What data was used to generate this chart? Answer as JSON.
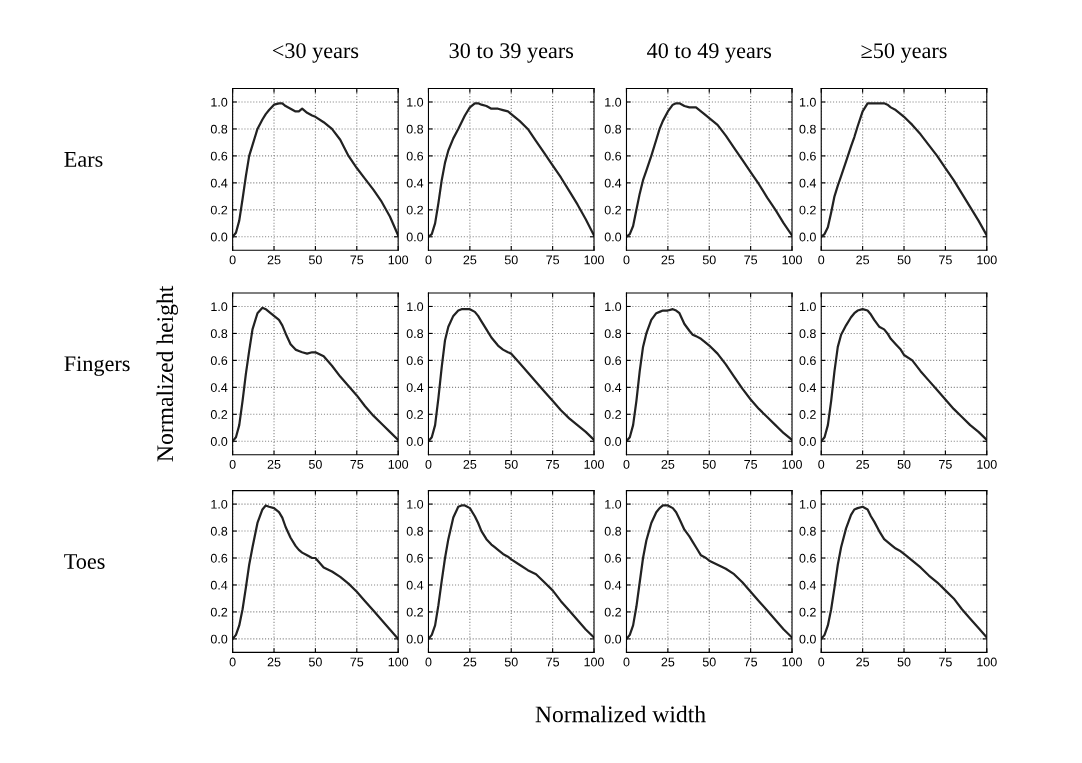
{
  "chart_data": [
    {
      "type": "line",
      "title": "<30 years",
      "annotations": [
        "Ears"
      ],
      "x": [
        0,
        2,
        4,
        6,
        8,
        10,
        12,
        15,
        18,
        20,
        22,
        25,
        28,
        30,
        32,
        35,
        38,
        40,
        42,
        45,
        48,
        50,
        55,
        60,
        65,
        70,
        75,
        80,
        85,
        90,
        95,
        100
      ],
      "series": [
        {
          "color": "#222222",
          "values": [
            0,
            0.03,
            0.12,
            0.28,
            0.45,
            0.6,
            0.68,
            0.8,
            0.87,
            0.91,
            0.94,
            0.98,
            0.99,
            0.99,
            0.97,
            0.95,
            0.93,
            0.93,
            0.95,
            0.92,
            0.9,
            0.89,
            0.85,
            0.8,
            0.72,
            0.6,
            0.51,
            0.43,
            0.35,
            0.26,
            0.15,
            0.01
          ]
        }
      ],
      "xlim": [
        0,
        100
      ],
      "ylim": [
        -0.1,
        1.1
      ],
      "xticks": [
        0,
        25,
        50,
        75,
        100
      ],
      "yticks": [
        {
          "value": 0,
          "label": "0.0"
        },
        {
          "value": 0.2,
          "label": "0.2"
        },
        {
          "value": 0.4,
          "label": "0.4"
        },
        {
          "value": 0.6,
          "label": "0.6"
        },
        {
          "value": 0.8,
          "label": "0.8"
        },
        {
          "value": 1,
          "label": "1.0"
        }
      ],
      "grid": true,
      "line_style": "solid"
    },
    {
      "type": "line",
      "title": "30 to 39 years",
      "x": [
        0,
        2,
        4,
        6,
        8,
        10,
        12,
        15,
        18,
        20,
        22,
        25,
        28,
        30,
        32,
        35,
        38,
        40,
        42,
        45,
        48,
        50,
        55,
        60,
        65,
        70,
        75,
        80,
        85,
        90,
        95,
        100
      ],
      "series": [
        {
          "color": "#222222",
          "values": [
            0,
            0.02,
            0.1,
            0.25,
            0.42,
            0.55,
            0.64,
            0.73,
            0.8,
            0.85,
            0.9,
            0.96,
            0.99,
            0.99,
            0.98,
            0.97,
            0.95,
            0.95,
            0.95,
            0.94,
            0.93,
            0.91,
            0.86,
            0.8,
            0.71,
            0.62,
            0.53,
            0.44,
            0.34,
            0.24,
            0.13,
            0.01
          ]
        }
      ],
      "xlim": [
        0,
        100
      ],
      "ylim": [
        -0.1,
        1.1
      ],
      "xticks": [
        0,
        25,
        50,
        75,
        100
      ],
      "yticks": [
        {
          "value": 0,
          "label": "0.0"
        },
        {
          "value": 0.2,
          "label": "0.2"
        },
        {
          "value": 0.4,
          "label": "0.4"
        },
        {
          "value": 0.6,
          "label": "0.6"
        },
        {
          "value": 0.8,
          "label": "0.8"
        },
        {
          "value": 1,
          "label": "1.0"
        }
      ],
      "grid": true,
      "line_style": "solid"
    },
    {
      "type": "line",
      "title": "40 to 49 years",
      "x": [
        0,
        2,
        4,
        6,
        8,
        10,
        12,
        15,
        18,
        20,
        22,
        25,
        28,
        30,
        32,
        35,
        38,
        40,
        42,
        45,
        48,
        50,
        55,
        60,
        65,
        70,
        75,
        80,
        85,
        90,
        95,
        100
      ],
      "series": [
        {
          "color": "#222222",
          "values": [
            0,
            0.02,
            0.08,
            0.2,
            0.32,
            0.42,
            0.49,
            0.6,
            0.72,
            0.8,
            0.86,
            0.93,
            0.98,
            0.99,
            0.99,
            0.97,
            0.96,
            0.96,
            0.96,
            0.93,
            0.9,
            0.88,
            0.83,
            0.75,
            0.66,
            0.57,
            0.48,
            0.39,
            0.29,
            0.2,
            0.1,
            0.01
          ]
        }
      ],
      "xlim": [
        0,
        100
      ],
      "ylim": [
        -0.1,
        1.1
      ],
      "xticks": [
        0,
        25,
        50,
        75,
        100
      ],
      "yticks": [
        {
          "value": 0,
          "label": "0.0"
        },
        {
          "value": 0.2,
          "label": "0.2"
        },
        {
          "value": 0.4,
          "label": "0.4"
        },
        {
          "value": 0.6,
          "label": "0.6"
        },
        {
          "value": 0.8,
          "label": "0.8"
        },
        {
          "value": 1,
          "label": "1.0"
        }
      ],
      "grid": true,
      "line_style": "solid"
    },
    {
      "type": "line",
      "title": "≥50 years",
      "x": [
        0,
        2,
        4,
        6,
        8,
        10,
        12,
        15,
        18,
        20,
        22,
        25,
        28,
        30,
        32,
        35,
        38,
        40,
        42,
        45,
        48,
        50,
        55,
        60,
        65,
        70,
        75,
        80,
        85,
        90,
        95,
        100
      ],
      "series": [
        {
          "color": "#222222",
          "values": [
            0,
            0.02,
            0.07,
            0.18,
            0.3,
            0.38,
            0.45,
            0.56,
            0.67,
            0.74,
            0.82,
            0.93,
            0.99,
            0.99,
            0.99,
            0.99,
            0.99,
            0.98,
            0.96,
            0.94,
            0.91,
            0.89,
            0.83,
            0.76,
            0.68,
            0.6,
            0.51,
            0.42,
            0.32,
            0.22,
            0.12,
            0.01
          ]
        }
      ],
      "xlim": [
        0,
        100
      ],
      "ylim": [
        -0.1,
        1.1
      ],
      "xticks": [
        0,
        25,
        50,
        75,
        100
      ],
      "yticks": [
        {
          "value": 0,
          "label": "0.0"
        },
        {
          "value": 0.2,
          "label": "0.2"
        },
        {
          "value": 0.4,
          "label": "0.4"
        },
        {
          "value": 0.6,
          "label": "0.6"
        },
        {
          "value": 0.8,
          "label": "0.8"
        },
        {
          "value": 1,
          "label": "1.0"
        }
      ],
      "grid": true,
      "line_style": "solid"
    },
    {
      "type": "line",
      "ylabel": "Normalized height",
      "annotations": [
        "Fingers"
      ],
      "x": [
        0,
        2,
        4,
        6,
        8,
        10,
        12,
        15,
        18,
        20,
        22,
        25,
        28,
        30,
        32,
        35,
        38,
        40,
        42,
        45,
        48,
        50,
        55,
        60,
        65,
        70,
        75,
        80,
        85,
        90,
        95,
        100
      ],
      "series": [
        {
          "color": "#222222",
          "values": [
            0,
            0.03,
            0.12,
            0.3,
            0.5,
            0.67,
            0.83,
            0.95,
            0.99,
            0.98,
            0.96,
            0.93,
            0.9,
            0.86,
            0.8,
            0.72,
            0.68,
            0.67,
            0.66,
            0.65,
            0.66,
            0.66,
            0.63,
            0.56,
            0.48,
            0.41,
            0.34,
            0.26,
            0.19,
            0.13,
            0.07,
            0.01
          ]
        }
      ],
      "xlim": [
        0,
        100
      ],
      "ylim": [
        -0.1,
        1.1
      ],
      "xticks": [
        0,
        25,
        50,
        75,
        100
      ],
      "yticks": [
        {
          "value": 0,
          "label": "0.0"
        },
        {
          "value": 0.2,
          "label": "0.2"
        },
        {
          "value": 0.4,
          "label": "0.4"
        },
        {
          "value": 0.6,
          "label": "0.6"
        },
        {
          "value": 0.8,
          "label": "0.8"
        },
        {
          "value": 1,
          "label": "1.0"
        }
      ],
      "grid": true,
      "line_style": "solid"
    },
    {
      "type": "line",
      "x": [
        0,
        2,
        4,
        6,
        8,
        10,
        12,
        15,
        18,
        20,
        22,
        25,
        28,
        30,
        32,
        35,
        38,
        40,
        42,
        45,
        48,
        50,
        55,
        60,
        65,
        70,
        75,
        80,
        85,
        90,
        95,
        100
      ],
      "series": [
        {
          "color": "#222222",
          "values": [
            0,
            0.03,
            0.12,
            0.32,
            0.55,
            0.75,
            0.85,
            0.93,
            0.97,
            0.98,
            0.98,
            0.98,
            0.96,
            0.93,
            0.89,
            0.83,
            0.77,
            0.74,
            0.71,
            0.68,
            0.66,
            0.65,
            0.58,
            0.51,
            0.44,
            0.37,
            0.3,
            0.23,
            0.17,
            0.12,
            0.07,
            0.01
          ]
        }
      ],
      "xlim": [
        0,
        100
      ],
      "ylim": [
        -0.1,
        1.1
      ],
      "xticks": [
        0,
        25,
        50,
        75,
        100
      ],
      "yticks": [
        {
          "value": 0,
          "label": "0.0"
        },
        {
          "value": 0.2,
          "label": "0.2"
        },
        {
          "value": 0.4,
          "label": "0.4"
        },
        {
          "value": 0.6,
          "label": "0.6"
        },
        {
          "value": 0.8,
          "label": "0.8"
        },
        {
          "value": 1,
          "label": "1.0"
        }
      ],
      "grid": true,
      "line_style": "solid"
    },
    {
      "type": "line",
      "x": [
        0,
        2,
        4,
        6,
        8,
        10,
        12,
        15,
        18,
        20,
        22,
        25,
        28,
        30,
        32,
        35,
        38,
        40,
        42,
        45,
        48,
        50,
        55,
        60,
        65,
        70,
        75,
        80,
        85,
        90,
        95,
        100
      ],
      "series": [
        {
          "color": "#222222",
          "values": [
            0,
            0.03,
            0.12,
            0.3,
            0.52,
            0.7,
            0.8,
            0.9,
            0.95,
            0.96,
            0.97,
            0.97,
            0.98,
            0.97,
            0.95,
            0.87,
            0.82,
            0.79,
            0.78,
            0.76,
            0.73,
            0.71,
            0.65,
            0.57,
            0.48,
            0.39,
            0.31,
            0.24,
            0.18,
            0.12,
            0.06,
            0.01
          ]
        }
      ],
      "xlim": [
        0,
        100
      ],
      "ylim": [
        -0.1,
        1.1
      ],
      "xticks": [
        0,
        25,
        50,
        75,
        100
      ],
      "yticks": [
        {
          "value": 0,
          "label": "0.0"
        },
        {
          "value": 0.2,
          "label": "0.2"
        },
        {
          "value": 0.4,
          "label": "0.4"
        },
        {
          "value": 0.6,
          "label": "0.6"
        },
        {
          "value": 0.8,
          "label": "0.8"
        },
        {
          "value": 1,
          "label": "1.0"
        }
      ],
      "grid": true,
      "line_style": "solid"
    },
    {
      "type": "line",
      "x": [
        0,
        2,
        4,
        6,
        8,
        10,
        12,
        15,
        18,
        20,
        22,
        25,
        28,
        30,
        32,
        35,
        38,
        40,
        42,
        45,
        48,
        50,
        55,
        60,
        65,
        70,
        75,
        80,
        85,
        90,
        95,
        100
      ],
      "series": [
        {
          "color": "#222222",
          "values": [
            0,
            0.03,
            0.12,
            0.3,
            0.52,
            0.7,
            0.79,
            0.86,
            0.92,
            0.95,
            0.97,
            0.98,
            0.97,
            0.94,
            0.9,
            0.85,
            0.83,
            0.8,
            0.76,
            0.72,
            0.68,
            0.64,
            0.6,
            0.52,
            0.45,
            0.38,
            0.31,
            0.24,
            0.18,
            0.12,
            0.07,
            0.01
          ]
        }
      ],
      "xlim": [
        0,
        100
      ],
      "ylim": [
        -0.1,
        1.1
      ],
      "xticks": [
        0,
        25,
        50,
        75,
        100
      ],
      "yticks": [
        {
          "value": 0,
          "label": "0.0"
        },
        {
          "value": 0.2,
          "label": "0.2"
        },
        {
          "value": 0.4,
          "label": "0.4"
        },
        {
          "value": 0.6,
          "label": "0.6"
        },
        {
          "value": 0.8,
          "label": "0.8"
        },
        {
          "value": 1,
          "label": "1.0"
        }
      ],
      "grid": true,
      "line_style": "solid"
    },
    {
      "type": "line",
      "annotations": [
        "Toes"
      ],
      "x": [
        0,
        2,
        4,
        6,
        8,
        10,
        12,
        15,
        18,
        20,
        22,
        25,
        28,
        30,
        32,
        35,
        38,
        40,
        42,
        45,
        48,
        50,
        55,
        60,
        65,
        70,
        75,
        80,
        85,
        90,
        95,
        100
      ],
      "series": [
        {
          "color": "#222222",
          "values": [
            0,
            0.03,
            0.1,
            0.22,
            0.38,
            0.55,
            0.68,
            0.86,
            0.96,
            0.99,
            0.98,
            0.97,
            0.94,
            0.9,
            0.83,
            0.75,
            0.69,
            0.66,
            0.64,
            0.62,
            0.6,
            0.6,
            0.53,
            0.5,
            0.46,
            0.41,
            0.35,
            0.28,
            0.21,
            0.14,
            0.07,
            0
          ]
        }
      ],
      "xlim": [
        0,
        100
      ],
      "ylim": [
        -0.1,
        1.1
      ],
      "xticks": [
        0,
        25,
        50,
        75,
        100
      ],
      "yticks": [
        {
          "value": 0,
          "label": "0.0"
        },
        {
          "value": 0.2,
          "label": "0.2"
        },
        {
          "value": 0.4,
          "label": "0.4"
        },
        {
          "value": 0.6,
          "label": "0.6"
        },
        {
          "value": 0.8,
          "label": "0.8"
        },
        {
          "value": 1,
          "label": "1.0"
        }
      ],
      "grid": true,
      "line_style": "solid"
    },
    {
      "type": "line",
      "xlabel": "Normalized width",
      "x": [
        0,
        2,
        4,
        6,
        8,
        10,
        12,
        15,
        18,
        20,
        22,
        25,
        28,
        30,
        32,
        35,
        38,
        40,
        42,
        45,
        48,
        50,
        55,
        60,
        65,
        70,
        75,
        80,
        85,
        90,
        95,
        100
      ],
      "series": [
        {
          "color": "#222222",
          "values": [
            0,
            0.03,
            0.1,
            0.25,
            0.43,
            0.6,
            0.74,
            0.9,
            0.98,
            0.99,
            0.99,
            0.97,
            0.91,
            0.86,
            0.8,
            0.74,
            0.7,
            0.68,
            0.66,
            0.63,
            0.61,
            0.59,
            0.55,
            0.51,
            0.48,
            0.42,
            0.36,
            0.28,
            0.21,
            0.14,
            0.07,
            0.01
          ]
        }
      ],
      "xlim": [
        0,
        100
      ],
      "ylim": [
        -0.1,
        1.1
      ],
      "xticks": [
        0,
        25,
        50,
        75,
        100
      ],
      "yticks": [
        {
          "value": 0,
          "label": "0.0"
        },
        {
          "value": 0.2,
          "label": "0.2"
        },
        {
          "value": 0.4,
          "label": "0.4"
        },
        {
          "value": 0.6,
          "label": "0.6"
        },
        {
          "value": 0.8,
          "label": "0.8"
        },
        {
          "value": 1,
          "label": "1.0"
        }
      ],
      "grid": true,
      "line_style": "solid"
    },
    {
      "type": "line",
      "x": [
        0,
        2,
        4,
        6,
        8,
        10,
        12,
        15,
        18,
        20,
        22,
        25,
        28,
        30,
        32,
        35,
        38,
        40,
        42,
        45,
        48,
        50,
        55,
        60,
        65,
        70,
        75,
        80,
        85,
        90,
        95,
        100
      ],
      "series": [
        {
          "color": "#222222",
          "values": [
            0,
            0.03,
            0.1,
            0.24,
            0.42,
            0.6,
            0.73,
            0.86,
            0.94,
            0.97,
            0.99,
            0.99,
            0.97,
            0.94,
            0.89,
            0.81,
            0.76,
            0.72,
            0.68,
            0.62,
            0.6,
            0.58,
            0.55,
            0.52,
            0.48,
            0.42,
            0.35,
            0.28,
            0.21,
            0.14,
            0.07,
            0.01
          ]
        }
      ],
      "xlim": [
        0,
        100
      ],
      "ylim": [
        -0.1,
        1.1
      ],
      "xticks": [
        0,
        25,
        50,
        75,
        100
      ],
      "yticks": [
        {
          "value": 0,
          "label": "0.0"
        },
        {
          "value": 0.2,
          "label": "0.2"
        },
        {
          "value": 0.4,
          "label": "0.4"
        },
        {
          "value": 0.6,
          "label": "0.6"
        },
        {
          "value": 0.8,
          "label": "0.8"
        },
        {
          "value": 1,
          "label": "1.0"
        }
      ],
      "grid": true,
      "line_style": "solid"
    },
    {
      "type": "line",
      "x": [
        0,
        2,
        4,
        6,
        8,
        10,
        12,
        15,
        18,
        20,
        22,
        25,
        28,
        30,
        32,
        35,
        38,
        40,
        42,
        45,
        48,
        50,
        55,
        60,
        65,
        70,
        75,
        80,
        85,
        90,
        95,
        100
      ],
      "series": [
        {
          "color": "#222222",
          "values": [
            0,
            0.03,
            0.1,
            0.22,
            0.38,
            0.55,
            0.68,
            0.82,
            0.92,
            0.96,
            0.97,
            0.98,
            0.96,
            0.91,
            0.87,
            0.8,
            0.74,
            0.72,
            0.7,
            0.67,
            0.65,
            0.63,
            0.58,
            0.53,
            0.47,
            0.42,
            0.36,
            0.3,
            0.22,
            0.15,
            0.08,
            0.01
          ]
        }
      ],
      "xlim": [
        0,
        100
      ],
      "ylim": [
        -0.1,
        1.1
      ],
      "xticks": [
        0,
        25,
        50,
        75,
        100
      ],
      "yticks": [
        {
          "value": 0,
          "label": "0.0"
        },
        {
          "value": 0.2,
          "label": "0.2"
        },
        {
          "value": 0.4,
          "label": "0.4"
        },
        {
          "value": 0.6,
          "label": "0.6"
        },
        {
          "value": 0.8,
          "label": "0.8"
        },
        {
          "value": 1,
          "label": "1.0"
        }
      ],
      "grid": true,
      "line_style": "solid"
    }
  ]
}
